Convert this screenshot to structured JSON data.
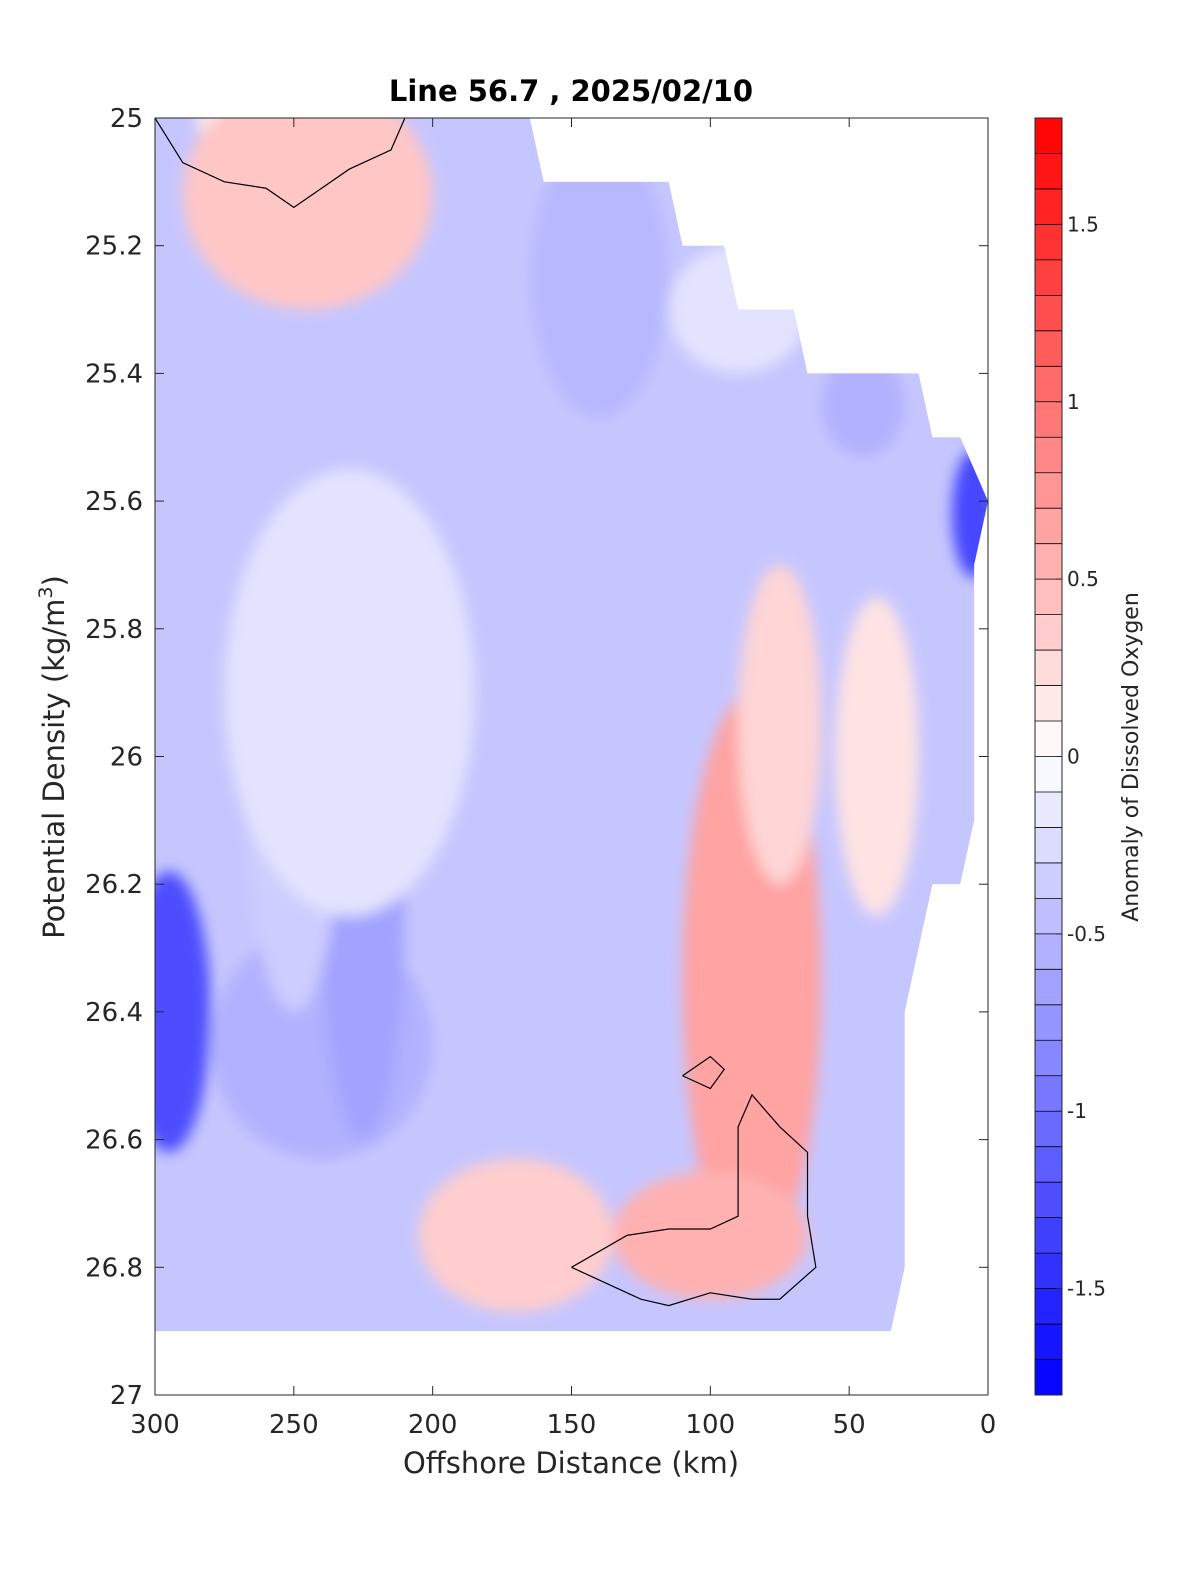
{
  "chart_data": {
    "type": "heatmap",
    "title": "Line 56.7 , 2025/02/10",
    "xlabel": "Offshore Distance (km)",
    "ylabel_main": "Potential Density (kg/m",
    "ylabel_sup": "3",
    "ylabel_close": ")",
    "colorbar_label": "Anomaly of Dissolved Oxygen",
    "xlim": [
      300,
      0
    ],
    "ylim": [
      25,
      27
    ],
    "x_reversed": true,
    "y_reversed": true,
    "x_ticks": [
      300,
      250,
      200,
      150,
      100,
      50,
      0
    ],
    "x_tick_labels": [
      "300",
      "250",
      "200",
      "150",
      "100",
      "50",
      "0"
    ],
    "y_ticks": [
      25,
      25.2,
      25.4,
      25.6,
      25.8,
      26,
      26.2,
      26.4,
      26.6,
      26.8,
      27
    ],
    "y_tick_labels": [
      "25",
      "25.2",
      "25.4",
      "25.6",
      "25.8",
      "26",
      "26.2",
      "26.4",
      "26.6",
      "26.8",
      "27"
    ],
    "clim": [
      -1.8,
      1.8
    ],
    "colorbar_ticks": [
      1.5,
      1,
      0.5,
      0,
      -0.5,
      -1,
      -1.5
    ],
    "colorbar_tick_labels": [
      "1.5",
      "1",
      "0.5",
      "0",
      "-0.5",
      "-1",
      "-1.5"
    ],
    "colorbar_levels": 36,
    "colormap": {
      "low": "#0000ff",
      "mid": "#ffffff",
      "high": "#ff0000"
    },
    "data_coverage": {
      "left_x": 300,
      "bottom_density": 26.9,
      "right_edge": [
        {
          "x": 165,
          "y": 25.0
        },
        {
          "x": 160,
          "y": 25.1
        },
        {
          "x": 115,
          "y": 25.1
        },
        {
          "x": 110,
          "y": 25.2
        },
        {
          "x": 95,
          "y": 25.2
        },
        {
          "x": 90,
          "y": 25.3
        },
        {
          "x": 70,
          "y": 25.3
        },
        {
          "x": 65,
          "y": 25.4
        },
        {
          "x": 25,
          "y": 25.4
        },
        {
          "x": 20,
          "y": 25.5
        },
        {
          "x": 10,
          "y": 25.5
        },
        {
          "x": 0,
          "y": 25.6
        },
        {
          "x": 5,
          "y": 25.7
        },
        {
          "x": 5,
          "y": 26.1
        },
        {
          "x": 10,
          "y": 26.2
        },
        {
          "x": 20,
          "y": 26.2
        },
        {
          "x": 25,
          "y": 26.3
        },
        {
          "x": 30,
          "y": 26.4
        },
        {
          "x": 30,
          "y": 26.8
        },
        {
          "x": 35,
          "y": 26.9
        }
      ]
    },
    "anomaly_field": [
      {
        "x": 250,
        "y": 25.0,
        "value": 0.15,
        "sx": 35,
        "sy": 0.08
      },
      {
        "x": 245,
        "y": 25.12,
        "value": 0.4,
        "sx": 45,
        "sy": 0.18
      },
      {
        "x": 295,
        "y": 26.4,
        "value": -1.25,
        "sx": 15,
        "sy": 0.22
      },
      {
        "x": 240,
        "y": 26.45,
        "value": -0.55,
        "sx": 40,
        "sy": 0.18
      },
      {
        "x": 225,
        "y": 26.25,
        "value": -0.65,
        "sx": 15,
        "sy": 0.35
      },
      {
        "x": 250,
        "y": 26.0,
        "value": -0.35,
        "sx": 18,
        "sy": 0.4
      },
      {
        "x": 230,
        "y": 25.9,
        "value": -0.2,
        "sx": 45,
        "sy": 0.35
      },
      {
        "x": 140,
        "y": 25.25,
        "value": -0.5,
        "sx": 25,
        "sy": 0.22
      },
      {
        "x": 90,
        "y": 25.3,
        "value": -0.2,
        "sx": 25,
        "sy": 0.1
      },
      {
        "x": 45,
        "y": 25.45,
        "value": -0.55,
        "sx": 15,
        "sy": 0.08
      },
      {
        "x": 5,
        "y": 25.62,
        "value": -1.3,
        "sx": 8,
        "sy": 0.1
      },
      {
        "x": 85,
        "y": 26.35,
        "value": 0.65,
        "sx": 25,
        "sy": 0.45
      },
      {
        "x": 100,
        "y": 26.75,
        "value": 0.55,
        "sx": 35,
        "sy": 0.1
      },
      {
        "x": 170,
        "y": 26.75,
        "value": 0.35,
        "sx": 35,
        "sy": 0.12
      },
      {
        "x": 75,
        "y": 25.95,
        "value": 0.3,
        "sx": 15,
        "sy": 0.25
      },
      {
        "x": 40,
        "y": 26.0,
        "value": 0.2,
        "sx": 15,
        "sy": 0.25
      }
    ],
    "zero_contours": [
      {
        "points": [
          [
            300,
            25.0
          ],
          [
            290,
            25.07
          ],
          [
            275,
            25.1
          ],
          [
            260,
            25.11
          ],
          [
            250,
            25.14
          ],
          [
            240,
            25.11
          ],
          [
            230,
            25.08
          ],
          [
            220,
            25.06
          ],
          [
            215,
            25.05
          ],
          [
            210,
            25.0
          ]
        ]
      },
      {
        "points": [
          [
            110,
            26.5
          ],
          [
            100,
            26.47
          ],
          [
            95,
            26.49
          ],
          [
            100,
            26.52
          ],
          [
            110,
            26.5
          ]
        ]
      },
      {
        "points": [
          [
            150,
            26.8
          ],
          [
            130,
            26.75
          ],
          [
            115,
            26.74
          ],
          [
            100,
            26.74
          ],
          [
            90,
            26.72
          ],
          [
            90,
            26.58
          ],
          [
            85,
            26.53
          ],
          [
            75,
            26.58
          ],
          [
            65,
            26.62
          ],
          [
            65,
            26.72
          ],
          [
            62,
            26.8
          ],
          [
            75,
            26.85
          ],
          [
            85,
            26.85
          ],
          [
            100,
            26.84
          ],
          [
            115,
            26.86
          ],
          [
            125,
            26.85
          ],
          [
            150,
            26.8
          ]
        ]
      }
    ]
  }
}
